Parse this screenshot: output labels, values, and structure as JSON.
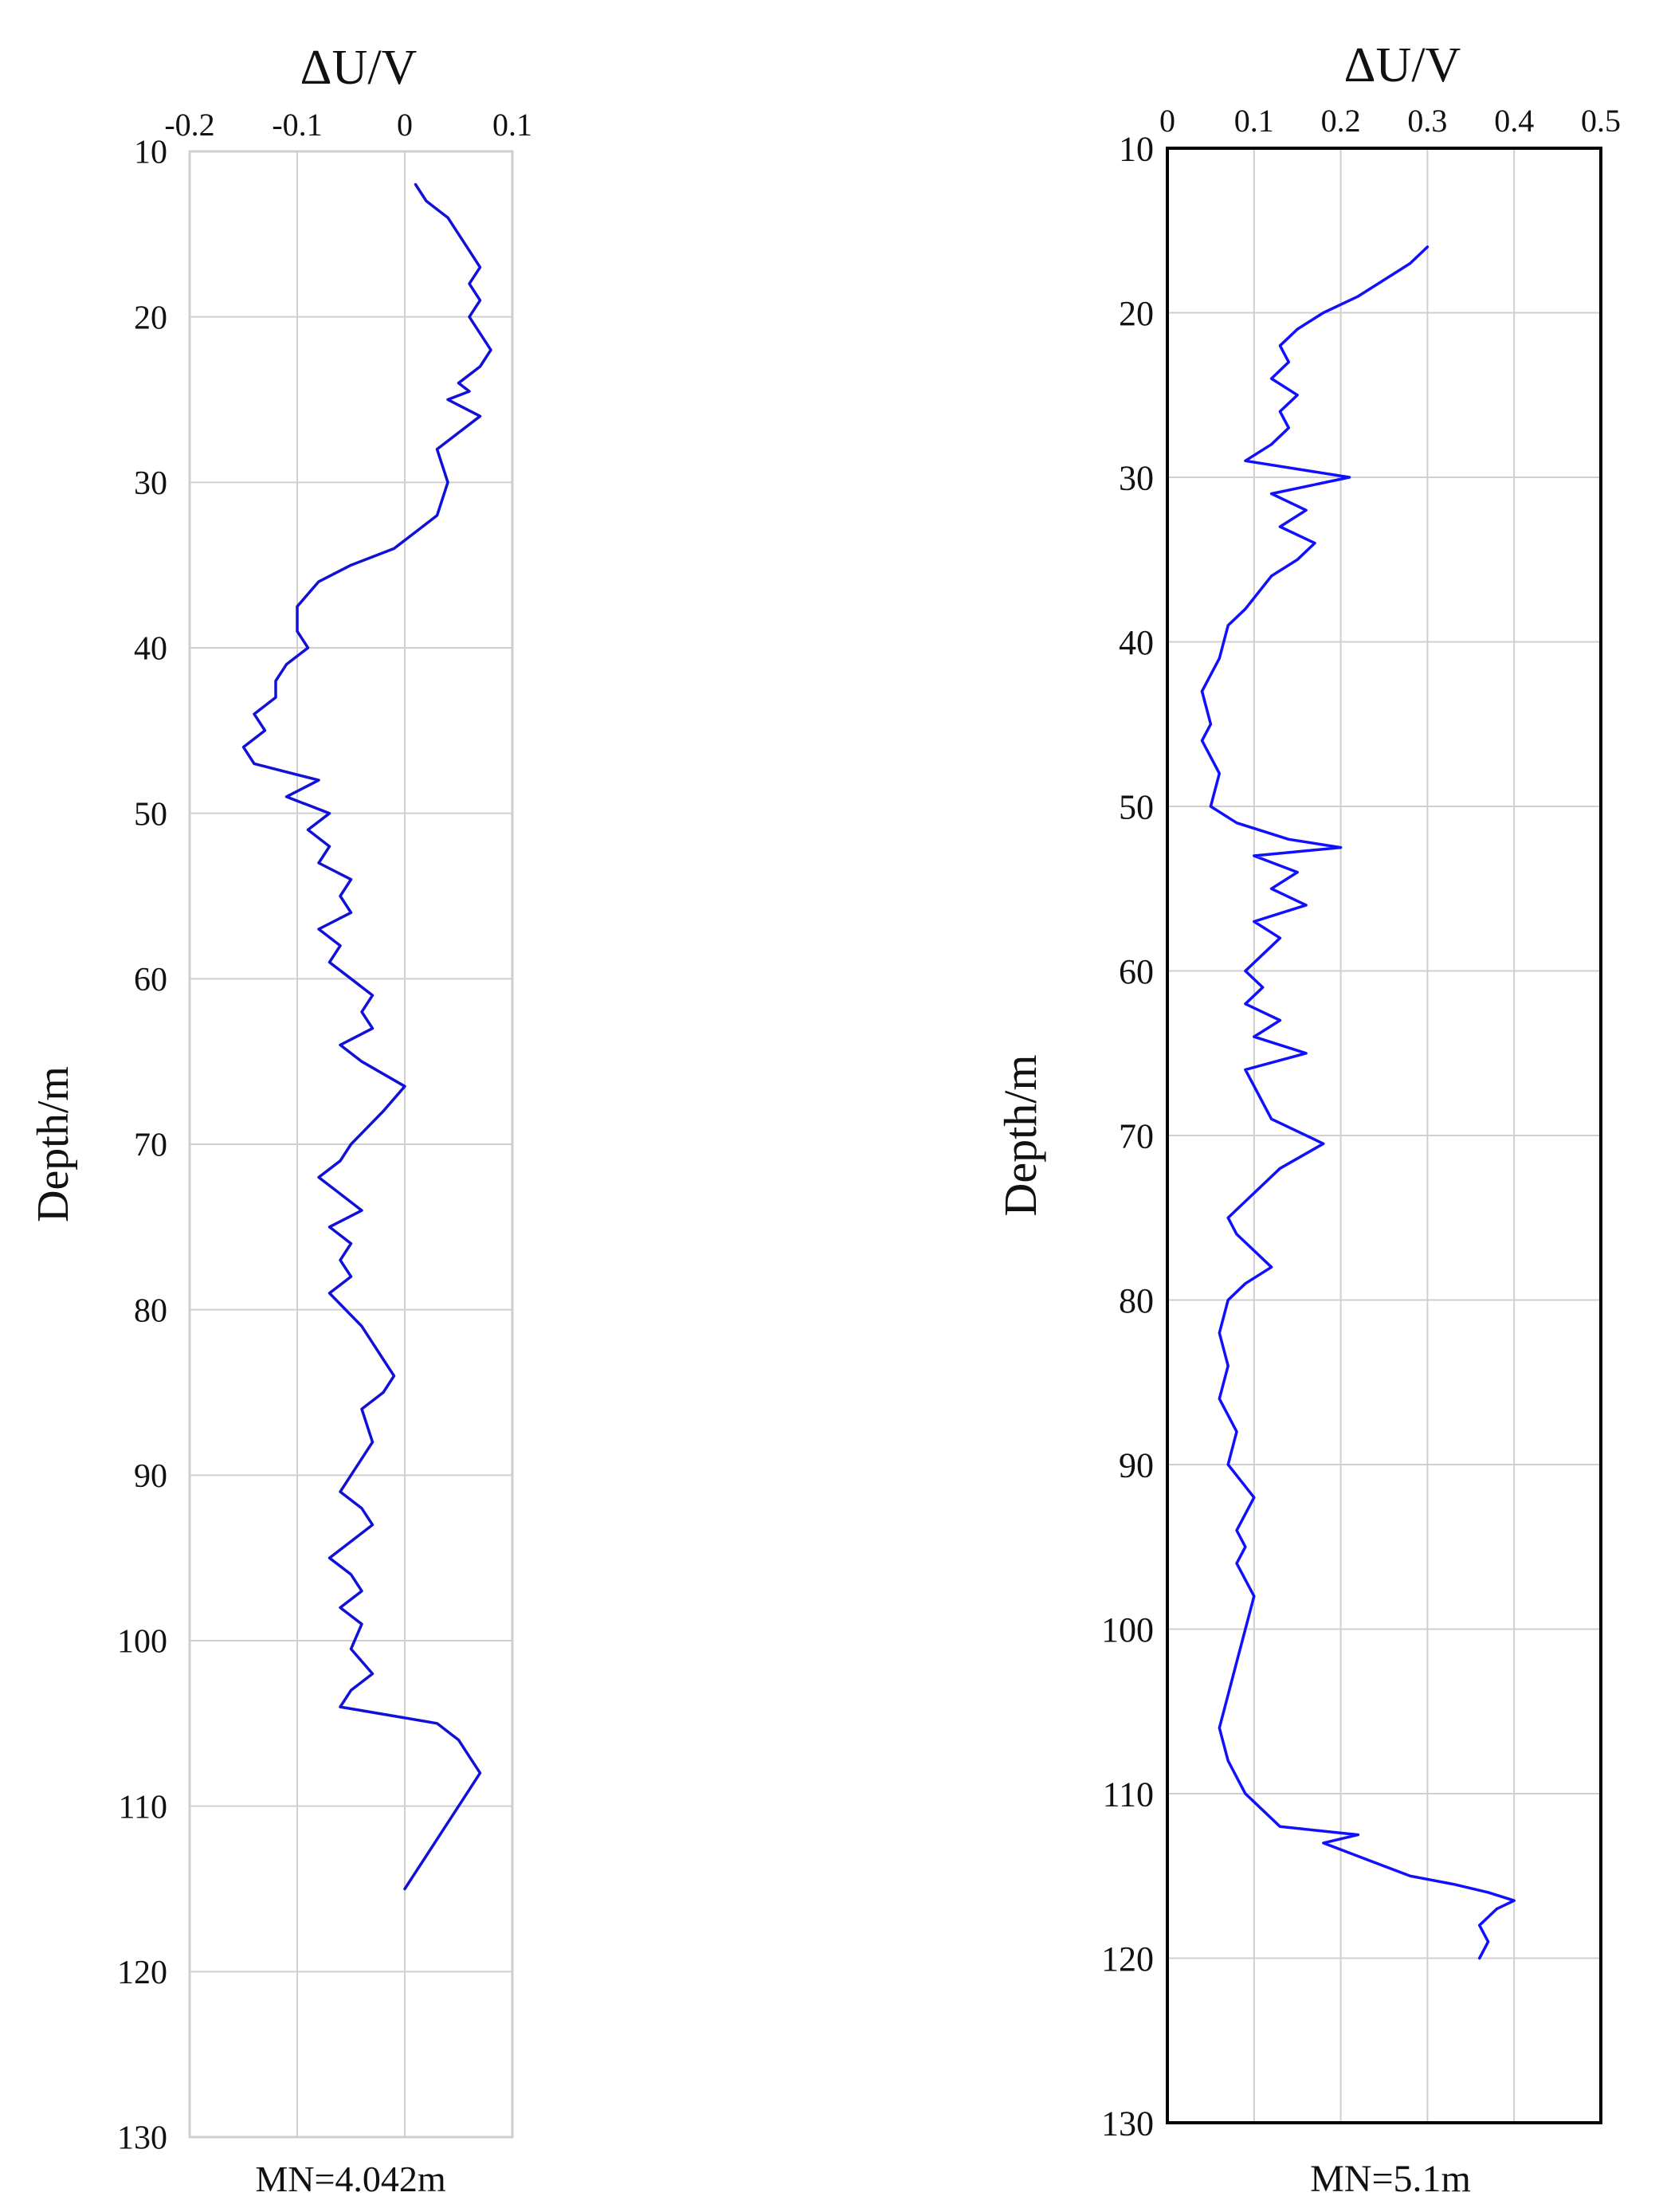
{
  "chart_data": [
    {
      "type": "line",
      "orientation": "depth-vertical",
      "title": "ΔU/V",
      "ylabel": "Depth/m",
      "footnote": "MN=4.042m",
      "xlim": [
        -0.2,
        0.1
      ],
      "ylim": [
        10,
        130
      ],
      "xticks": [
        "-0.2",
        "-0.1",
        "0",
        "0.1"
      ],
      "xtick_values": [
        -0.2,
        -0.1,
        0,
        0.1
      ],
      "yticks": [
        "10",
        "20",
        "30",
        "40",
        "50",
        "60",
        "70",
        "80",
        "90",
        "100",
        "110",
        "120",
        "130"
      ],
      "grid": true,
      "color": "#1010d8",
      "series": [
        {
          "x": [
            0.01,
            0.02,
            0.03,
            0.04,
            0.05,
            0.06,
            0.07,
            0.06,
            0.07,
            0.06,
            0.07,
            0.08,
            0.07,
            0.05,
            0.06,
            0.04,
            0.07,
            0.05,
            0.03,
            0.04,
            0.03,
            -0.01,
            -0.05,
            -0.08,
            -0.1,
            -0.1,
            -0.09,
            -0.11,
            -0.12,
            -0.12,
            -0.14,
            -0.13,
            -0.15,
            -0.14,
            -0.11,
            -0.08,
            -0.11,
            -0.07,
            -0.09,
            -0.07,
            -0.08,
            -0.05,
            -0.06,
            -0.05,
            -0.08,
            -0.06,
            -0.07,
            -0.05,
            -0.03,
            -0.04,
            -0.03,
            -0.06,
            -0.04,
            0.0,
            -0.02,
            -0.05,
            -0.06,
            -0.08,
            -0.06,
            -0.04,
            -0.07,
            -0.05,
            -0.06,
            -0.05,
            -0.07,
            -0.04,
            -0.02,
            -0.01,
            -0.02,
            -0.04,
            -0.03,
            -0.05,
            -0.06,
            -0.04,
            -0.03,
            -0.07,
            -0.05,
            -0.04,
            -0.06,
            -0.04,
            -0.05,
            -0.03,
            -0.05,
            -0.06,
            0.03,
            0.05,
            0.06,
            0.07,
            0.06,
            0.05,
            0.04,
            0.03,
            0.02,
            0.01,
            0.0
          ],
          "y": [
            12,
            13,
            13.5,
            14,
            15,
            16,
            17,
            18,
            19,
            20,
            21,
            22,
            23,
            24,
            24.5,
            25,
            26,
            27,
            28,
            30,
            32,
            34,
            35,
            36,
            37.5,
            39,
            40,
            41,
            42,
            43,
            44,
            45,
            46,
            47,
            47.5,
            48,
            49,
            50,
            51,
            52,
            53,
            54,
            55,
            56,
            57,
            58,
            59,
            60,
            61,
            62,
            63,
            64,
            65,
            66.5,
            68,
            70,
            71,
            72,
            73,
            74,
            75,
            76,
            77,
            78,
            79,
            81,
            83,
            84,
            85,
            86,
            88,
            90,
            91,
            92,
            93,
            95,
            96,
            97,
            98,
            99,
            100.5,
            102,
            103,
            104,
            105,
            106,
            107,
            108,
            109,
            110,
            111,
            112,
            113,
            114,
            115
          ]
        }
      ]
    },
    {
      "type": "line",
      "orientation": "depth-vertical",
      "title": "ΔU/V",
      "ylabel": "Depth/m",
      "footnote": "MN=5.1m",
      "xlim": [
        0,
        0.5
      ],
      "ylim": [
        10,
        130
      ],
      "xticks": [
        "0",
        "0.1",
        "0.2",
        "0.3",
        "0.4",
        "0.5"
      ],
      "xtick_values": [
        0,
        0.1,
        0.2,
        0.3,
        0.4,
        0.5
      ],
      "yticks": [
        "10",
        "20",
        "30",
        "40",
        "50",
        "60",
        "70",
        "80",
        "90",
        "100",
        "110",
        "120",
        "130"
      ],
      "grid": true,
      "color": "#1010ff",
      "series": [
        {
          "x": [
            0.3,
            0.28,
            0.22,
            0.18,
            0.15,
            0.13,
            0.14,
            0.12,
            0.15,
            0.13,
            0.14,
            0.12,
            0.09,
            0.21,
            0.12,
            0.16,
            0.13,
            0.17,
            0.15,
            0.12,
            0.09,
            0.07,
            0.06,
            0.05,
            0.04,
            0.05,
            0.04,
            0.06,
            0.05,
            0.08,
            0.14,
            0.2,
            0.1,
            0.15,
            0.12,
            0.16,
            0.1,
            0.13,
            0.11,
            0.09,
            0.11,
            0.09,
            0.13,
            0.1,
            0.16,
            0.09,
            0.1,
            0.12,
            0.18,
            0.13,
            0.09,
            0.07,
            0.08,
            0.1,
            0.12,
            0.09,
            0.07,
            0.06,
            0.07,
            0.06,
            0.07,
            0.08,
            0.07,
            0.1,
            0.08,
            0.09,
            0.08,
            0.1,
            0.09,
            0.08,
            0.07,
            0.06,
            0.07,
            0.08,
            0.09,
            0.1,
            0.11,
            0.13,
            0.22,
            0.18,
            0.23,
            0.28,
            0.33,
            0.37,
            0.4,
            0.38,
            0.36,
            0.37,
            0.36
          ],
          "y": [
            16,
            17,
            19,
            20,
            21,
            22,
            23,
            24,
            25,
            26,
            27,
            28,
            29,
            30,
            31,
            32,
            33,
            34,
            35,
            36,
            38,
            39,
            41,
            42,
            43,
            45,
            46,
            48,
            50,
            51,
            52,
            52.5,
            53,
            54,
            55,
            56,
            57,
            58,
            59,
            60,
            61,
            62,
            63,
            64,
            65,
            66,
            67,
            69,
            70.5,
            72,
            74,
            75,
            76,
            77,
            78,
            79,
            80,
            82,
            84,
            86,
            87,
            88,
            90,
            92,
            94,
            95,
            96,
            98,
            100,
            102,
            104,
            106,
            108,
            109,
            110,
            110.5,
            111,
            112,
            112.5,
            113,
            114,
            115,
            115.5,
            116,
            116.5,
            117,
            118,
            119,
            120
          ]
        }
      ]
    }
  ]
}
